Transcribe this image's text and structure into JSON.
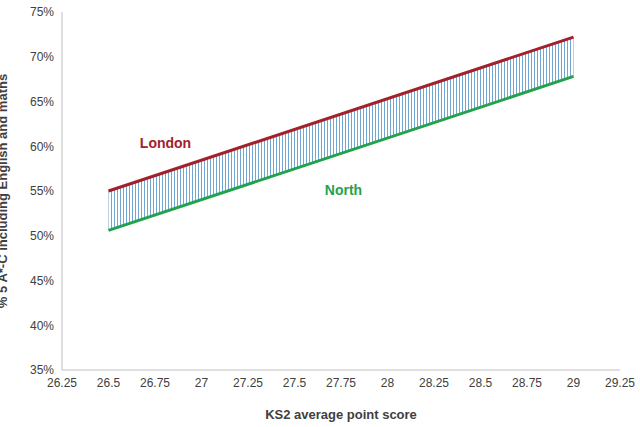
{
  "chart_data": {
    "type": "line",
    "x": [
      26.5,
      29
    ],
    "series": [
      {
        "name": "London",
        "color": "#a3212b",
        "values": [
          55,
          72.2
        ]
      },
      {
        "name": "North",
        "color": "#23a24d",
        "values": [
          50.6,
          67.8
        ]
      }
    ],
    "xlabel": "KS2 average point score",
    "ylabel": "% 5 A*-C including English and maths",
    "xlim": [
      26.25,
      29.25
    ],
    "xticks": [
      26.25,
      26.5,
      26.75,
      27,
      27.25,
      27.5,
      27.75,
      28,
      28.25,
      28.5,
      28.75,
      29,
      29.25
    ],
    "ylim": [
      35,
      75
    ],
    "yticks": [
      {
        "value": 35,
        "label": "35%"
      },
      {
        "value": 40,
        "label": "40%"
      },
      {
        "value": 45,
        "label": "45%"
      },
      {
        "value": 50,
        "label": "50%"
      },
      {
        "value": 55,
        "label": "55%"
      },
      {
        "value": 60,
        "label": "60%"
      },
      {
        "value": 65,
        "label": "65%"
      },
      {
        "value": 70,
        "label": "70%"
      },
      {
        "value": 75,
        "label": "75%"
      }
    ],
    "grid": false
  }
}
